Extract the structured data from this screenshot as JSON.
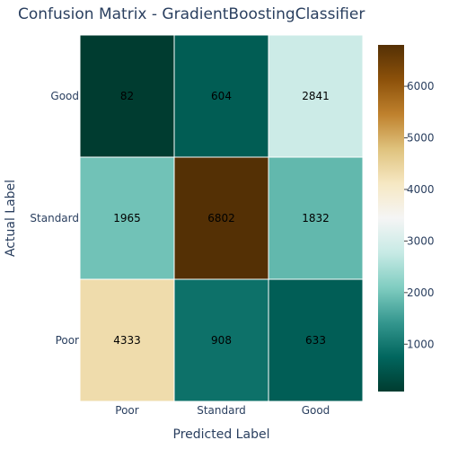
{
  "chart_data": {
    "type": "heatmap",
    "title": "Confusion Matrix - GradientBoostingClassifier",
    "xlabel": "Predicted Label",
    "ylabel": "Actual Label",
    "x_categories": [
      "Poor",
      "Standard",
      "Good"
    ],
    "y_categories": [
      "Good",
      "Standard",
      "Poor"
    ],
    "z": [
      [
        82,
        604,
        2841
      ],
      [
        1965,
        6802,
        1832
      ],
      [
        4333,
        908,
        633
      ]
    ],
    "colorscale": "BrBG",
    "color_range": [
      82,
      6802
    ],
    "colorbar": {
      "ticks": [
        1000,
        2000,
        3000,
        4000,
        5000,
        6000
      ],
      "tick_labels": [
        "1000",
        "2000",
        "3000",
        "4000",
        "5000",
        "6000"
      ],
      "placement": "right"
    },
    "grid": false,
    "cell_label_color": "#000000"
  }
}
